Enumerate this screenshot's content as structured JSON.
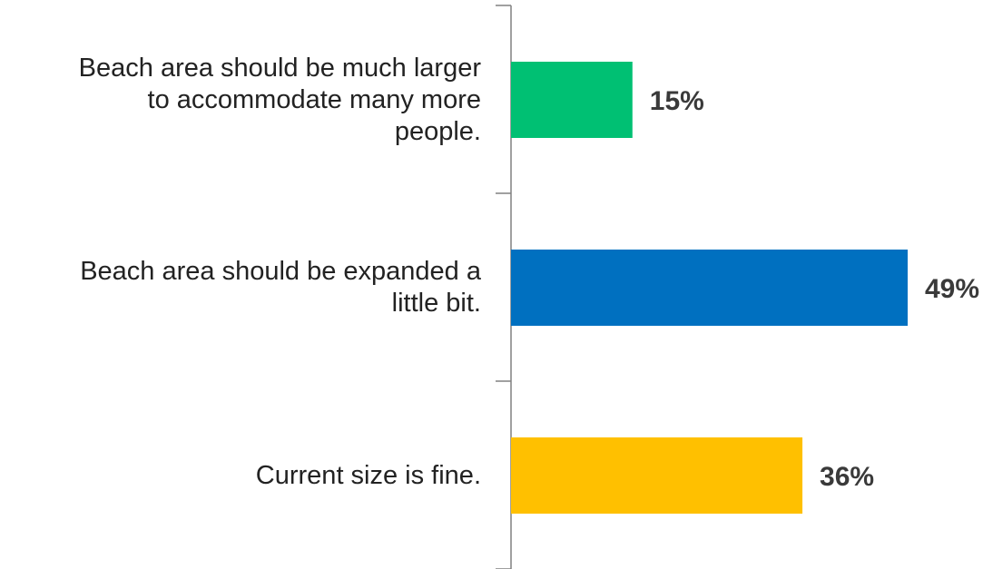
{
  "chart_data": {
    "type": "bar",
    "orientation": "horizontal",
    "categories": [
      "Beach area should be much larger to accommodate many more people.",
      "Beach area should be expanded a little bit.",
      "Current size is fine."
    ],
    "category_lines": [
      [
        "Beach area should be much larger",
        "to accommodate many more",
        "people."
      ],
      [
        "Beach area should be expanded a",
        "little bit."
      ],
      [
        "Current size is fine."
      ]
    ],
    "values": [
      15,
      49,
      36
    ],
    "value_labels": [
      "15%",
      "49%",
      "36%"
    ],
    "colors": [
      "#00c073",
      "#0070c0",
      "#ffc000"
    ],
    "xlim": [
      0,
      49
    ],
    "title": "",
    "xlabel": "",
    "ylabel": "",
    "grid": false,
    "legend": "none"
  }
}
